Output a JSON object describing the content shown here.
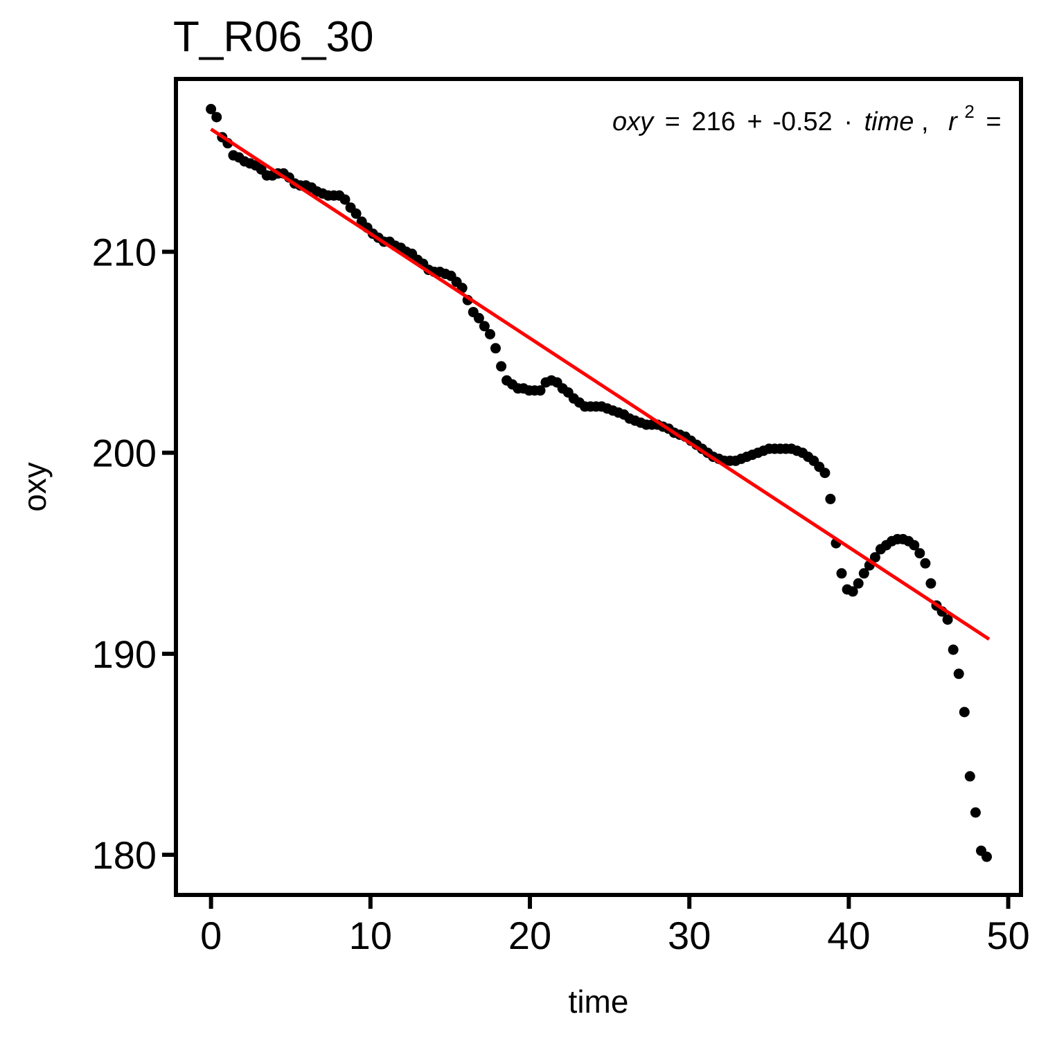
{
  "chart_data": {
    "type": "scatter",
    "title": "T_R06_30",
    "xlabel": "time",
    "ylabel": "oxy",
    "xlim": [
      -2.2,
      50.8
    ],
    "ylim": [
      178.0,
      218.6
    ],
    "x_ticks": [
      0,
      10,
      20,
      30,
      40,
      50
    ],
    "y_ticks": [
      180,
      190,
      200,
      210
    ],
    "x_tick_labels": [
      "0",
      "10",
      "20",
      "30",
      "40",
      "50"
    ],
    "y_tick_labels": [
      "180",
      "190",
      "200",
      "210"
    ],
    "grid": false,
    "annotation": {
      "lhs": "oxy",
      "intercept": "216",
      "slope": "-0.52",
      "var": "time",
      "r2_label": "r",
      "r2_exp": "2",
      "eq_sign": "=",
      "plus_sign": "+",
      "dot_sign": "·",
      "comma": ","
    },
    "fit_line": {
      "intercept": 216.1,
      "slope": -0.52,
      "x_start": 0,
      "x_end": 48.8,
      "color": "#ff0000"
    },
    "point_color": "#000000",
    "series": [
      {
        "name": "oxy",
        "x": [
          0.0,
          0.35,
          0.7,
          1.05,
          1.4,
          1.75,
          2.1,
          2.45,
          2.8,
          3.15,
          3.5,
          3.85,
          4.2,
          4.55,
          4.9,
          5.25,
          5.6,
          5.95,
          6.3,
          6.65,
          7.0,
          7.35,
          7.7,
          8.05,
          8.4,
          8.75,
          9.1,
          9.45,
          9.8,
          10.15,
          10.5,
          10.85,
          11.2,
          11.55,
          11.9,
          12.25,
          12.6,
          12.95,
          13.3,
          13.65,
          14.0,
          14.35,
          14.7,
          15.05,
          15.4,
          15.75,
          16.1,
          16.45,
          16.8,
          17.15,
          17.5,
          17.85,
          18.2,
          18.55,
          18.9,
          19.25,
          19.6,
          19.95,
          20.3,
          20.65,
          21.0,
          21.35,
          21.7,
          22.05,
          22.4,
          22.75,
          23.1,
          23.45,
          23.8,
          24.15,
          24.5,
          24.85,
          25.2,
          25.55,
          25.9,
          26.25,
          26.6,
          26.95,
          27.3,
          27.65,
          28.0,
          28.35,
          28.7,
          29.05,
          29.4,
          29.75,
          30.1,
          30.45,
          30.8,
          31.15,
          31.5,
          31.85,
          32.2,
          32.55,
          32.9,
          33.25,
          33.6,
          33.95,
          34.3,
          34.65,
          35.0,
          35.35,
          35.7,
          36.05,
          36.4,
          36.75,
          37.1,
          37.45,
          37.8,
          38.15,
          38.5,
          38.85,
          39.2,
          39.55,
          39.9,
          40.25,
          40.6,
          40.95,
          41.3,
          41.65,
          42.0,
          42.35,
          42.7,
          43.05,
          43.4,
          43.75,
          44.1,
          44.45,
          44.8,
          45.15,
          45.5,
          45.85,
          46.2,
          46.55,
          46.9,
          47.25,
          47.6,
          47.95,
          48.3,
          48.65
        ],
        "values": [
          217.1,
          216.7,
          215.7,
          215.4,
          214.8,
          214.7,
          214.5,
          214.4,
          214.3,
          214.1,
          213.8,
          213.8,
          213.9,
          213.9,
          213.7,
          213.4,
          213.3,
          213.3,
          213.2,
          213.0,
          212.9,
          212.8,
          212.8,
          212.8,
          212.6,
          212.2,
          211.9,
          211.5,
          211.2,
          210.9,
          210.7,
          210.5,
          210.5,
          210.3,
          210.2,
          210.0,
          209.9,
          209.6,
          209.4,
          209.1,
          209.0,
          209.0,
          208.9,
          208.8,
          208.5,
          208.2,
          207.6,
          207.0,
          206.7,
          206.3,
          205.9,
          205.2,
          204.3,
          203.6,
          203.4,
          203.2,
          203.2,
          203.1,
          203.1,
          203.1,
          203.5,
          203.6,
          203.5,
          203.2,
          203.0,
          202.7,
          202.5,
          202.3,
          202.3,
          202.3,
          202.3,
          202.2,
          202.1,
          202.0,
          201.9,
          201.7,
          201.6,
          201.5,
          201.4,
          201.4,
          201.4,
          201.3,
          201.2,
          201.0,
          200.9,
          200.8,
          200.6,
          200.4,
          200.2,
          200.0,
          199.8,
          199.7,
          199.6,
          199.6,
          199.6,
          199.7,
          199.8,
          199.9,
          200.0,
          200.1,
          200.2,
          200.2,
          200.2,
          200.2,
          200.2,
          200.1,
          200.0,
          199.8,
          199.6,
          199.3,
          199.0,
          197.7,
          195.5,
          194.0,
          193.2,
          193.1,
          193.5,
          194.0,
          194.4,
          194.8,
          195.2,
          195.4,
          195.6,
          195.7,
          195.7,
          195.6,
          195.4,
          195.0,
          194.5,
          193.5,
          192.4,
          192.1,
          191.7,
          190.2,
          189.0,
          187.1,
          183.9,
          182.1,
          180.2,
          179.9
        ]
      }
    ]
  }
}
